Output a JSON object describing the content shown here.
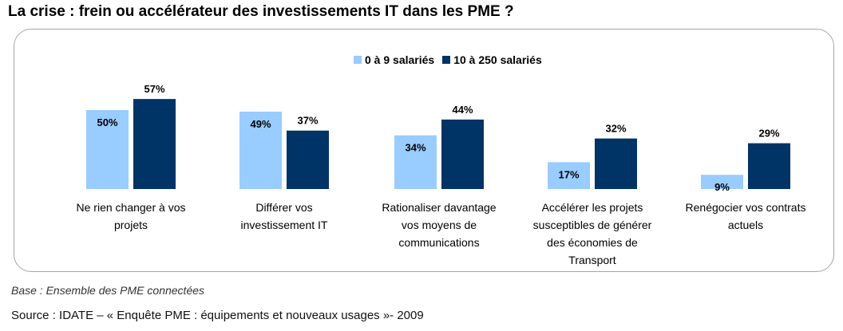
{
  "title": "La crise : frein ou accélérateur des investissements IT dans les PME ?",
  "footnote": "Base : Ensemble des PME connectées",
  "source": "Source : IDATE – « Enquête PME : équipements et nouveaux usages »- 2009",
  "colors": {
    "series1": "#99ccff",
    "series2": "#003366",
    "panel_border": "#a6a6a6"
  },
  "chart_data": {
    "type": "bar",
    "title": "La crise : frein ou accélérateur des investissements IT dans les PME ?",
    "categories": [
      "Ne rien changer à vos projets",
      "Différer vos investissement IT",
      "Rationaliser davantage vos moyens de communications",
      "Accélérer les projets susceptibles de générer des économies de Transport",
      "Renégocier vos contrats actuels"
    ],
    "category_lines": [
      [
        "Ne rien changer à vos",
        "projets"
      ],
      [
        "Différer vos",
        "investissement IT"
      ],
      [
        "Rationaliser davantage",
        "vos moyens de",
        "communications"
      ],
      [
        "Accélérer les projets",
        "susceptibles de générer",
        "des économies de",
        "Transport"
      ],
      [
        "Renégocier vos contrats",
        "actuels"
      ]
    ],
    "series": [
      {
        "name": "0 à 9 salariés",
        "values": [
          50,
          49,
          34,
          17,
          9
        ],
        "labels": [
          "50%",
          "49%",
          "34%",
          "17%",
          "9%"
        ]
      },
      {
        "name": "10 à 250 salariés",
        "values": [
          57,
          37,
          44,
          32,
          29
        ],
        "labels": [
          "57%",
          "37%",
          "44%",
          "32%",
          "29%"
        ]
      }
    ],
    "ylim": [
      0,
      100
    ],
    "unit": "%",
    "legend": "top",
    "grid": false
  }
}
